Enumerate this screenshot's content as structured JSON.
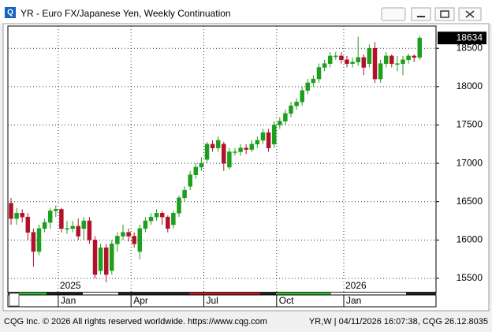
{
  "window_title": "YR - Euro FX/Japanese Yen, Weekly Continuation",
  "footer_left": "CQG Inc. © 2026 All rights reserved worldwide. https://www.cqg.com",
  "footer_right": "YR,W | 04/11/2026 16:07:38, CQG 26.12.8035",
  "chart_data": {
    "type": "candlestick",
    "categories": [
      null,
      null,
      null,
      null,
      null,
      null,
      null,
      null,
      null,
      "Jan",
      null,
      null,
      null,
      null,
      null,
      null,
      null,
      null,
      null,
      null,
      null,
      null,
      "Apr",
      null,
      null,
      null,
      null,
      null,
      null,
      null,
      null,
      null,
      null,
      null,
      null,
      "Jul",
      null,
      null,
      null,
      null,
      null,
      null,
      null,
      null,
      null,
      null,
      null,
      null,
      "Oct",
      null,
      null,
      null,
      null,
      null,
      null,
      null,
      null,
      null,
      null,
      null,
      "Jan",
      null,
      null,
      null,
      null,
      null,
      null,
      null,
      null,
      null,
      null,
      null,
      null,
      null
    ],
    "x_year_labels": [
      "2025",
      "2026"
    ],
    "open": [
      16480,
      16280,
      16350,
      16300,
      16100,
      15850,
      16150,
      16230,
      16380,
      16400,
      16150,
      16150,
      16180,
      16150,
      16250,
      16000,
      15600,
      15900,
      15600,
      15950,
      16050,
      16100,
      16050,
      15850,
      16150,
      16250,
      16300,
      16350,
      16300,
      16200,
      16350,
      16550,
      16700,
      16850,
      16950,
      17050,
      17250,
      17200,
      17250,
      16950,
      17150,
      17150,
      17200,
      17180,
      17250,
      17300,
      17400,
      17250,
      17500,
      17550,
      17650,
      17750,
      17800,
      17950,
      18050,
      18100,
      18250,
      18300,
      18400,
      18400,
      18350,
      18300,
      18320,
      18380,
      18300,
      18500,
      18100,
      18300,
      18400,
      18300,
      18300,
      18350,
      18400,
      18380
    ],
    "high": [
      16550,
      16420,
      16400,
      16350,
      16150,
      16200,
      16280,
      16420,
      16450,
      16420,
      16250,
      16250,
      16280,
      16300,
      16300,
      16050,
      15950,
      15950,
      16000,
      16100,
      16200,
      16150,
      16100,
      16200,
      16300,
      16350,
      16400,
      16380,
      16320,
      16380,
      16580,
      16700,
      16900,
      17000,
      17080,
      17280,
      17300,
      17350,
      17280,
      17200,
      17200,
      17250,
      17250,
      17300,
      17350,
      17450,
      17450,
      17550,
      17600,
      17700,
      17800,
      17850,
      18000,
      18100,
      18150,
      18300,
      18350,
      18450,
      18450,
      18450,
      18400,
      18380,
      18650,
      18420,
      18550,
      18580,
      18350,
      18450,
      18420,
      18400,
      18400,
      18430,
      18420,
      18660
    ],
    "low": [
      16200,
      16200,
      16230,
      16000,
      15650,
      15800,
      16100,
      16150,
      16300,
      16100,
      16080,
      16100,
      16000,
      16000,
      15950,
      15500,
      15550,
      15450,
      15550,
      15850,
      16000,
      15980,
      15900,
      15750,
      16100,
      16200,
      16250,
      16200,
      16100,
      16150,
      16300,
      16500,
      16650,
      16800,
      16900,
      17000,
      17150,
      17150,
      16900,
      16920,
      17100,
      17100,
      17120,
      17150,
      17200,
      17250,
      17150,
      17200,
      17450,
      17500,
      17600,
      17700,
      17750,
      17900,
      18000,
      18050,
      18200,
      18250,
      18350,
      18300,
      18250,
      18250,
      18270,
      18150,
      18250,
      18050,
      18050,
      18250,
      18250,
      18200,
      18150,
      18300,
      18320,
      18350
    ],
    "close": [
      16280,
      16350,
      16300,
      16100,
      15850,
      16150,
      16230,
      16380,
      16400,
      16150,
      16150,
      16180,
      16050,
      16250,
      16000,
      15550,
      15900,
      15550,
      15950,
      16050,
      16100,
      16050,
      15950,
      16150,
      16250,
      16300,
      16350,
      16300,
      16150,
      16350,
      16550,
      16650,
      16850,
      16950,
      17000,
      17250,
      17200,
      17300,
      17000,
      17150,
      17150,
      17200,
      17180,
      17250,
      17300,
      17400,
      17200,
      17500,
      17550,
      17650,
      17750,
      17800,
      17950,
      18050,
      18100,
      18250,
      18300,
      18400,
      18400,
      18350,
      18300,
      18320,
      18380,
      18250,
      18500,
      18100,
      18300,
      18400,
      18300,
      18300,
      18350,
      18400,
      18380,
      18634
    ],
    "up_color": "#1e9e1e",
    "down_color": "#b0122a",
    "ylim": [
      15325,
      18790
    ],
    "yticks": [
      15500,
      16000,
      16500,
      17000,
      17500,
      18000,
      18500
    ],
    "grid": true
  }
}
